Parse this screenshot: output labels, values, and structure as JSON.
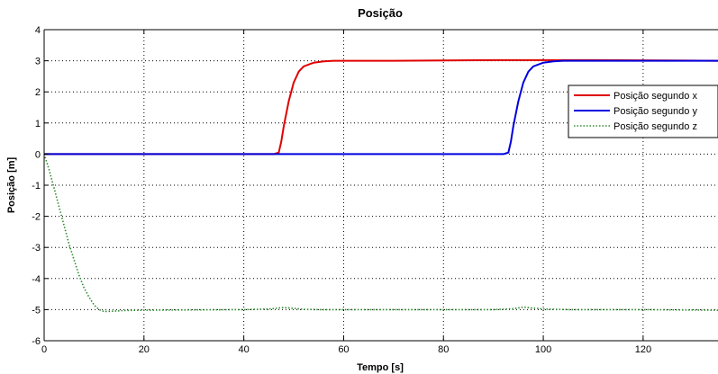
{
  "chart_data": {
    "type": "line",
    "title": "Posição",
    "xlabel": "Tempo [s]",
    "ylabel": "Posição [m]",
    "xlim": [
      0,
      135
    ],
    "ylim": [
      -6,
      4
    ],
    "xticks": [
      0,
      20,
      40,
      60,
      80,
      100,
      120
    ],
    "yticks": [
      -6,
      -5,
      -4,
      -3,
      -2,
      -1,
      0,
      1,
      2,
      3,
      4
    ],
    "grid": true,
    "legend_position": "right",
    "series": [
      {
        "name": "Posição segundo x",
        "color": "#e00000",
        "style": "solid",
        "x": [
          0,
          46,
          47,
          47.5,
          48,
          49,
          50,
          51,
          52,
          54,
          56,
          58,
          60,
          70,
          90,
          110,
          135
        ],
        "y": [
          0,
          0,
          0.05,
          0.4,
          0.9,
          1.7,
          2.3,
          2.65,
          2.82,
          2.94,
          2.98,
          3.0,
          3.0,
          3.0,
          3.02,
          3.02,
          3.0
        ]
      },
      {
        "name": "Posição segundo y",
        "color": "#0000e0",
        "style": "solid",
        "x": [
          0,
          46,
          92,
          93,
          93.5,
          94,
          95,
          96,
          97,
          98,
          100,
          102,
          104,
          110,
          120,
          135
        ],
        "y": [
          0,
          0,
          0,
          0.05,
          0.4,
          0.9,
          1.7,
          2.3,
          2.65,
          2.82,
          2.94,
          2.98,
          3.0,
          3.0,
          3.0,
          3.0
        ]
      },
      {
        "name": "Posição segundo z",
        "color": "#2e8b2e",
        "style": "dotted",
        "x": [
          0,
          1,
          2,
          3,
          4,
          5,
          6,
          7,
          8,
          9,
          10,
          11,
          12,
          14,
          16,
          20,
          30,
          40,
          45,
          48,
          50,
          52,
          55,
          60,
          70,
          80,
          90,
          94,
          96,
          98,
          100,
          105,
          110,
          120,
          135
        ],
        "y": [
          0,
          -0.5,
          -1.1,
          -1.7,
          -2.3,
          -2.9,
          -3.4,
          -3.9,
          -4.3,
          -4.6,
          -4.85,
          -5.0,
          -5.06,
          -5.05,
          -5.03,
          -5.02,
          -5.01,
          -5.0,
          -4.98,
          -4.93,
          -4.96,
          -4.99,
          -5.0,
          -5.0,
          -5.0,
          -5.0,
          -5.0,
          -4.97,
          -4.92,
          -4.95,
          -4.98,
          -5.0,
          -5.0,
          -5.0,
          -5.02
        ]
      }
    ]
  }
}
